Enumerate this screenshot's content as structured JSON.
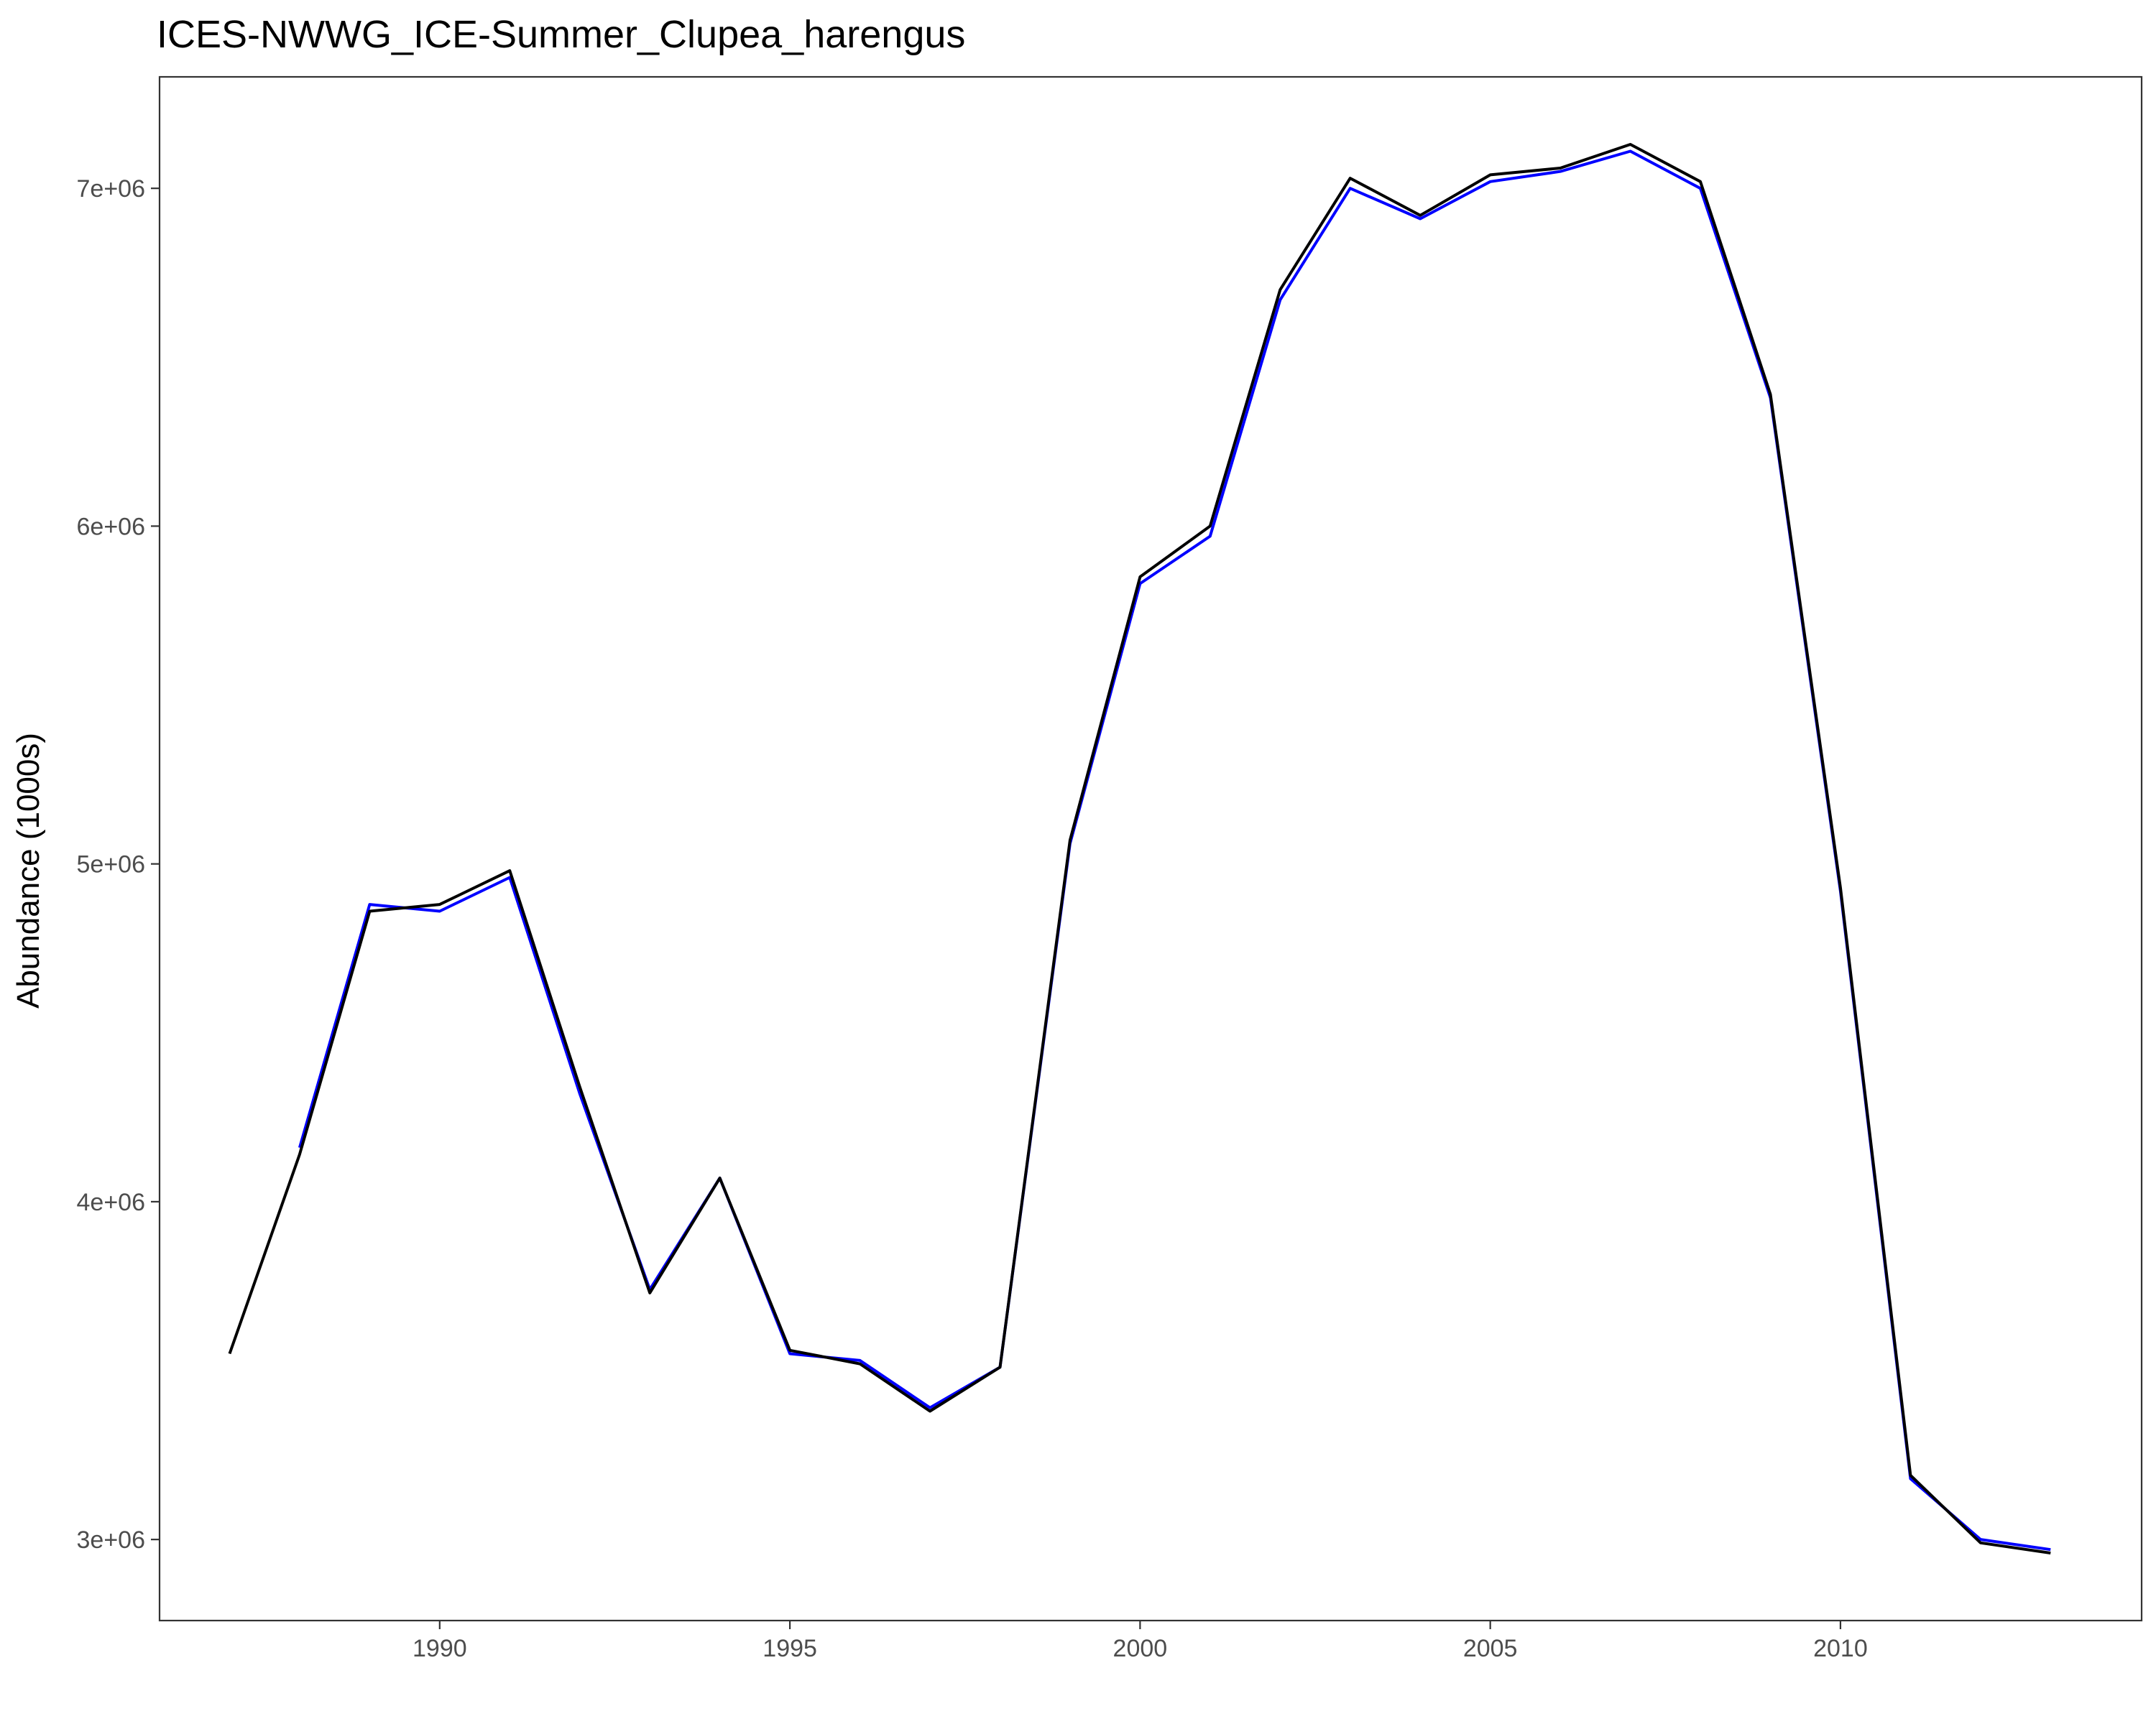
{
  "chart_data": {
    "type": "line",
    "title": "ICES-NWWG_ICE-Summer_Clupea_harengus",
    "xlabel": "",
    "ylabel": "Abundance (1000s)",
    "xlim": [
      1986.0,
      2014.3
    ],
    "ylim": [
      2760000,
      7330000
    ],
    "x_ticks": [
      1990,
      1995,
      2000,
      2005,
      2010
    ],
    "y_ticks": [
      {
        "value": 3000000,
        "label": "3e+06"
      },
      {
        "value": 4000000,
        "label": "4e+06"
      },
      {
        "value": 5000000,
        "label": "5e+06"
      },
      {
        "value": 6000000,
        "label": "6e+06"
      },
      {
        "value": 7000000,
        "label": "7e+06"
      }
    ],
    "grid": false,
    "legend": "none",
    "series": [
      {
        "color": "#0000ff",
        "points": [
          [
            1988,
            4160000
          ],
          [
            1989,
            4880000
          ],
          [
            1990,
            4860000
          ],
          [
            1991,
            4960000
          ],
          [
            1992,
            4320000
          ],
          [
            1993,
            3740000
          ],
          [
            1994,
            4070000
          ],
          [
            1995,
            3550000
          ],
          [
            1996,
            3530000
          ],
          [
            1997,
            3390000
          ],
          [
            1998,
            3510000
          ],
          [
            1999,
            5060000
          ],
          [
            2000,
            5830000
          ],
          [
            2001,
            5970000
          ],
          [
            2002,
            6670000
          ],
          [
            2003,
            7000000
          ],
          [
            2004,
            6910000
          ],
          [
            2005,
            7020000
          ],
          [
            2006,
            7050000
          ],
          [
            2007,
            7110000
          ],
          [
            2008,
            7000000
          ],
          [
            2009,
            6380000
          ],
          [
            2010,
            4920000
          ],
          [
            2011,
            3180000
          ],
          [
            2012,
            3000000
          ],
          [
            2013,
            2970000
          ]
        ]
      },
      {
        "color": "#000000",
        "points": [
          [
            1987,
            3550000
          ],
          [
            1988,
            4140000
          ],
          [
            1989,
            4860000
          ],
          [
            1990,
            4880000
          ],
          [
            1991,
            4980000
          ],
          [
            1992,
            4340000
          ],
          [
            1993,
            3730000
          ],
          [
            1994,
            4070000
          ],
          [
            1995,
            3560000
          ],
          [
            1996,
            3520000
          ],
          [
            1997,
            3380000
          ],
          [
            1998,
            3510000
          ],
          [
            1999,
            5070000
          ],
          [
            2000,
            5850000
          ],
          [
            2001,
            6000000
          ],
          [
            2002,
            6700000
          ],
          [
            2003,
            7030000
          ],
          [
            2004,
            6920000
          ],
          [
            2005,
            7040000
          ],
          [
            2006,
            7060000
          ],
          [
            2007,
            7130000
          ],
          [
            2008,
            7020000
          ],
          [
            2009,
            6390000
          ],
          [
            2010,
            4930000
          ],
          [
            2011,
            3190000
          ],
          [
            2012,
            2990000
          ],
          [
            2013,
            2960000
          ]
        ]
      }
    ]
  }
}
